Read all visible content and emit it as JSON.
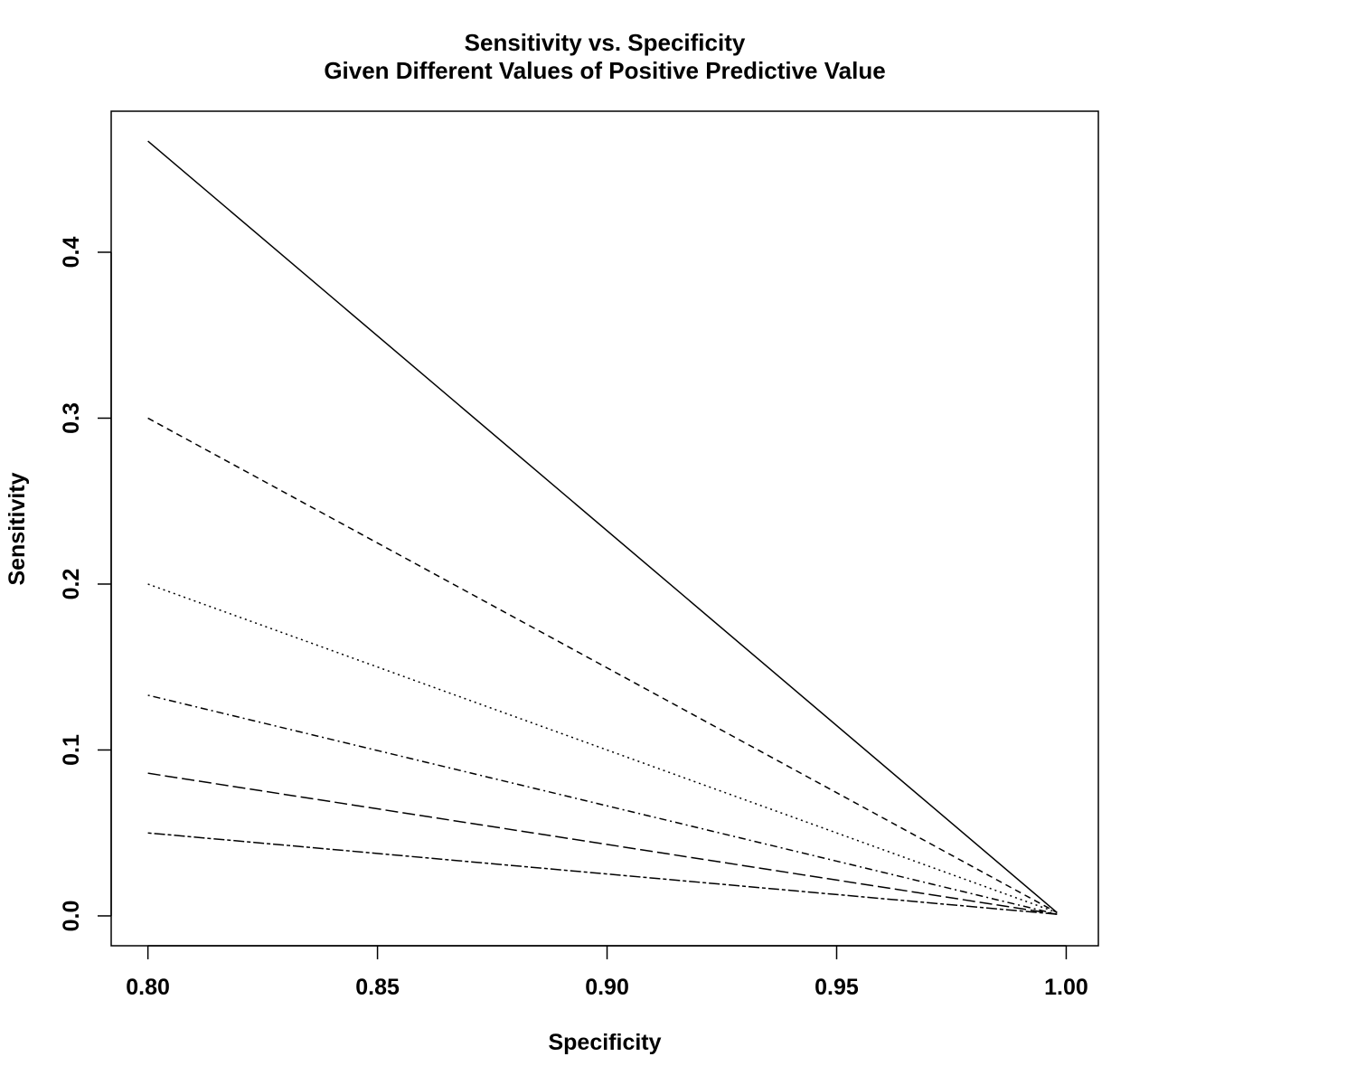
{
  "chart_data": {
    "type": "line",
    "title": "Sensitivity vs. Specificity",
    "subtitle": "Given Different Values of Positive Predictive Value",
    "xlabel": "Specificity",
    "ylabel": "Sensitivity",
    "xlim": [
      0.792,
      1.007
    ],
    "ylim": [
      -0.018,
      0.485
    ],
    "x_ticks": [
      0.8,
      0.85,
      0.9,
      0.95,
      1.0
    ],
    "x_tick_labels": [
      "0.80",
      "0.85",
      "0.90",
      "0.95",
      "1.00"
    ],
    "y_ticks": [
      0.0,
      0.1,
      0.2,
      0.3,
      0.4
    ],
    "y_tick_labels": [
      "0.0",
      "0.1",
      "0.2",
      "0.3",
      "0.4"
    ],
    "grid": false,
    "legend": "none",
    "series": [
      {
        "line_style": "solid",
        "color": "#000000",
        "x": [
          0.8,
          0.998
        ],
        "y": [
          0.467,
          0.002
        ]
      },
      {
        "line_style": "dashed",
        "color": "#000000",
        "x": [
          0.8,
          0.998
        ],
        "y": [
          0.3,
          0.002
        ]
      },
      {
        "line_style": "dotted",
        "color": "#000000",
        "x": [
          0.8,
          0.998
        ],
        "y": [
          0.2,
          0.002
        ]
      },
      {
        "line_style": "dotdash",
        "color": "#000000",
        "x": [
          0.8,
          0.998
        ],
        "y": [
          0.133,
          0.001
        ]
      },
      {
        "line_style": "longdash",
        "color": "#000000",
        "x": [
          0.8,
          0.998
        ],
        "y": [
          0.086,
          0.001
        ]
      },
      {
        "line_style": "twodash",
        "color": "#000000",
        "x": [
          0.8,
          0.998
        ],
        "y": [
          0.05,
          0.001
        ]
      }
    ]
  }
}
